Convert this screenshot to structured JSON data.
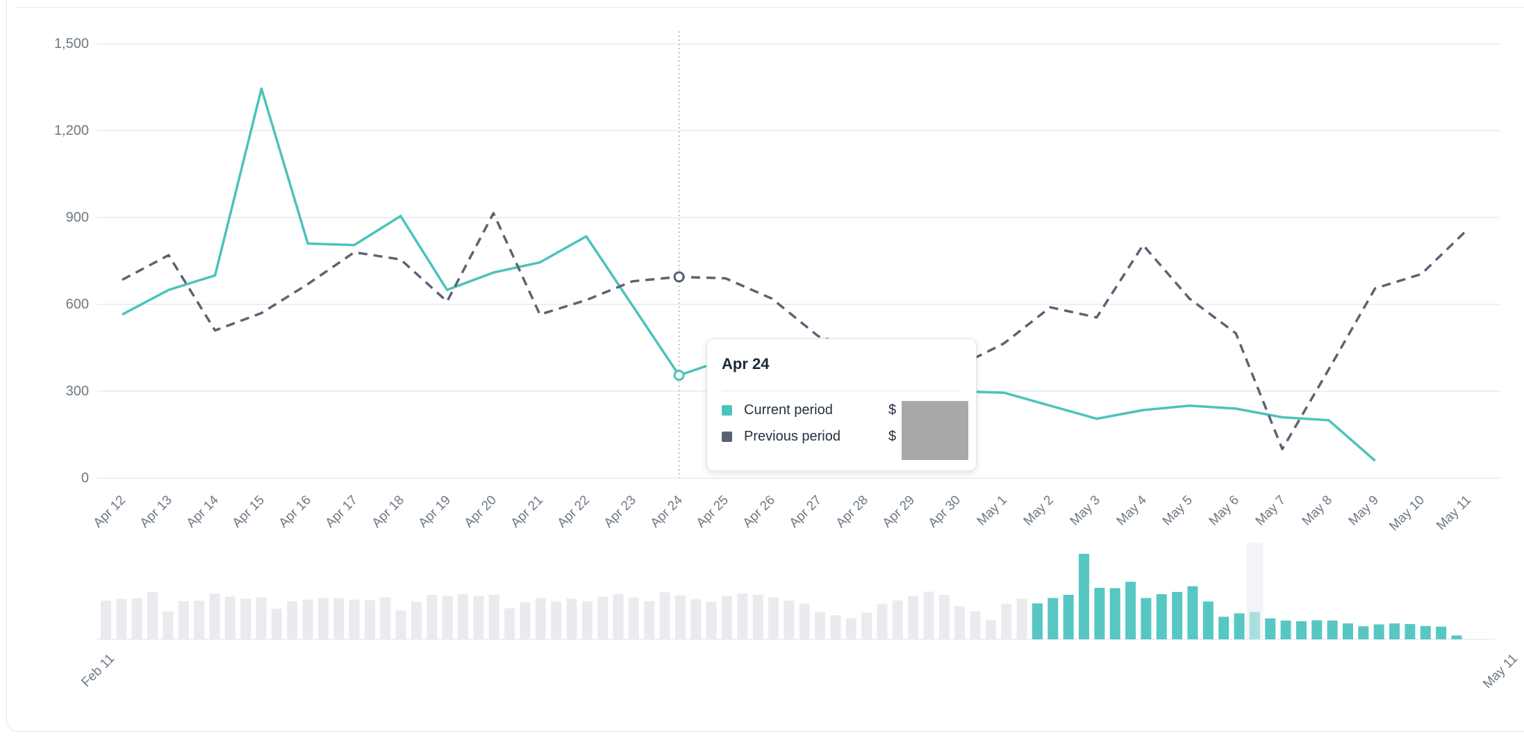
{
  "axes": {
    "y_tick_labels": [
      "1,500",
      "1,200",
      "900",
      "600",
      "300",
      "0"
    ],
    "nav_start_label": "Feb 11",
    "nav_end_label": "May 11"
  },
  "tooltip": {
    "title": "Apr 24",
    "rows": [
      {
        "label": "Current period",
        "value_prefix": "$",
        "swatch_color": "#4cc2bc",
        "value_redacted": true
      },
      {
        "label": "Previous period",
        "value_prefix": "$",
        "swatch_color": "#5a6372",
        "value_redacted": true
      }
    ],
    "redaction_color": "#a9a9a9"
  },
  "colors": {
    "current_line": "#4cc2bc",
    "previous_line": "#5a6372",
    "gridline": "#e9eaed",
    "axis_label": "#6e7985",
    "hover_line": "#a8adb5",
    "nav_bar_past": "#e9ebee",
    "nav_bar_current": "#57c7c2",
    "nav_bar_highlighted": "#a8e0de",
    "nav_highlight_column": "#f2f4f9"
  },
  "chart_data": {
    "type": "line",
    "title": "",
    "xlabel": "",
    "ylabel": "",
    "ylim": [
      0,
      1500
    ],
    "y_ticks": [
      1500,
      1200,
      900,
      600,
      300,
      0
    ],
    "grid": "horizontal",
    "legend_position": "tooltip",
    "hover_index": 12,
    "hover_category": "Apr 24",
    "categories": [
      "Apr 12",
      "Apr 13",
      "Apr 14",
      "Apr 15",
      "Apr 16",
      "Apr 17",
      "Apr 18",
      "Apr 19",
      "Apr 20",
      "Apr 21",
      "Apr 22",
      "Apr 23",
      "Apr 24",
      "Apr 25",
      "Apr 26",
      "Apr 27",
      "Apr 28",
      "Apr 29",
      "Apr 30",
      "May 1",
      "May 2",
      "May 3",
      "May 4",
      "May 5",
      "May 6",
      "May 7",
      "May 8",
      "May 9",
      "May 10",
      "May 11"
    ],
    "series": [
      {
        "name": "Current period",
        "style": "solid",
        "color": "#4cc2bc",
        "values": [
          565,
          650,
          700,
          1345,
          810,
          805,
          905,
          650,
          710,
          745,
          835,
          595,
          355,
          410,
          430,
          330,
          295,
          285,
          300,
          295,
          250,
          205,
          235,
          250,
          240,
          210,
          200,
          60,
          null,
          null
        ]
      },
      {
        "name": "Previous period",
        "style": "dashed",
        "color": "#5a6372",
        "values": [
          685,
          770,
          510,
          570,
          670,
          780,
          755,
          610,
          915,
          565,
          615,
          680,
          695,
          690,
          620,
          490,
          440,
          405,
          385,
          465,
          590,
          555,
          805,
          620,
          500,
          100,
          375,
          655,
          705,
          860
        ]
      }
    ],
    "navigator": {
      "type": "bar",
      "range_start": "Feb 11",
      "range_end": "May 11",
      "current_start_index": 60,
      "highlight_index": 74,
      "values": [
        607,
        637,
        645,
        746,
        437,
        600,
        607,
        720,
        673,
        637,
        662,
        480,
        597,
        626,
        648,
        648,
        626,
        619,
        662,
        455,
        590,
        699,
        680,
        710,
        684,
        699,
        488,
        582,
        648,
        593,
        640,
        600,
        670,
        710,
        655,
        600,
        740,
        690,
        630,
        590,
        680,
        720,
        700,
        660,
        610,
        560,
        430,
        380,
        330,
        420,
        560,
        610,
        680,
        750,
        700,
        520,
        440,
        300,
        560,
        640,
        565,
        650,
        700,
        1345,
        810,
        805,
        905,
        650,
        710,
        745,
        835,
        595,
        355,
        410,
        430,
        330,
        295,
        285,
        300,
        295,
        250,
        205,
        235,
        250,
        240,
        210,
        200,
        60
      ]
    }
  }
}
